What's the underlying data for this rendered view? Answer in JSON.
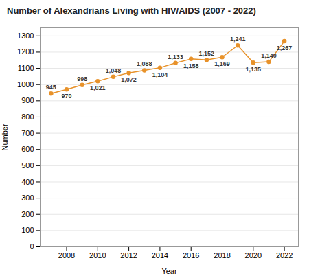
{
  "chart_data": {
    "type": "line",
    "title": "Number of Alexandrians Living with HIV/AIDS (2007 - 2022)",
    "xlabel": "Year",
    "ylabel": "Number",
    "x": [
      2007,
      2008,
      2009,
      2010,
      2011,
      2012,
      2013,
      2014,
      2015,
      2016,
      2017,
      2018,
      2019,
      2020,
      2021,
      2022
    ],
    "values": [
      945,
      970,
      998,
      1021,
      1048,
      1072,
      1088,
      1104,
      1133,
      1158,
      1152,
      1169,
      1241,
      1135,
      1140,
      1267
    ],
    "value_labels": [
      "945",
      "970",
      "998",
      "1,021",
      "1,048",
      "1,072",
      "1,088",
      "1,104",
      "1,133",
      "1,158",
      "1,152",
      "1,169",
      "1,241",
      "1,135",
      "1,140",
      "1,267"
    ],
    "data_labels": true,
    "color": "#E8922A",
    "marker": "circle",
    "xlim": [
      2006.3,
      2022.9
    ],
    "xticks": [
      2008,
      2010,
      2012,
      2014,
      2016,
      2018,
      2020,
      2022
    ],
    "ylim": [
      0,
      1350
    ],
    "yticks": [
      0,
      100,
      200,
      300,
      400,
      500,
      600,
      700,
      800,
      900,
      1000,
      1100,
      1200,
      1300
    ],
    "grid": "y"
  }
}
